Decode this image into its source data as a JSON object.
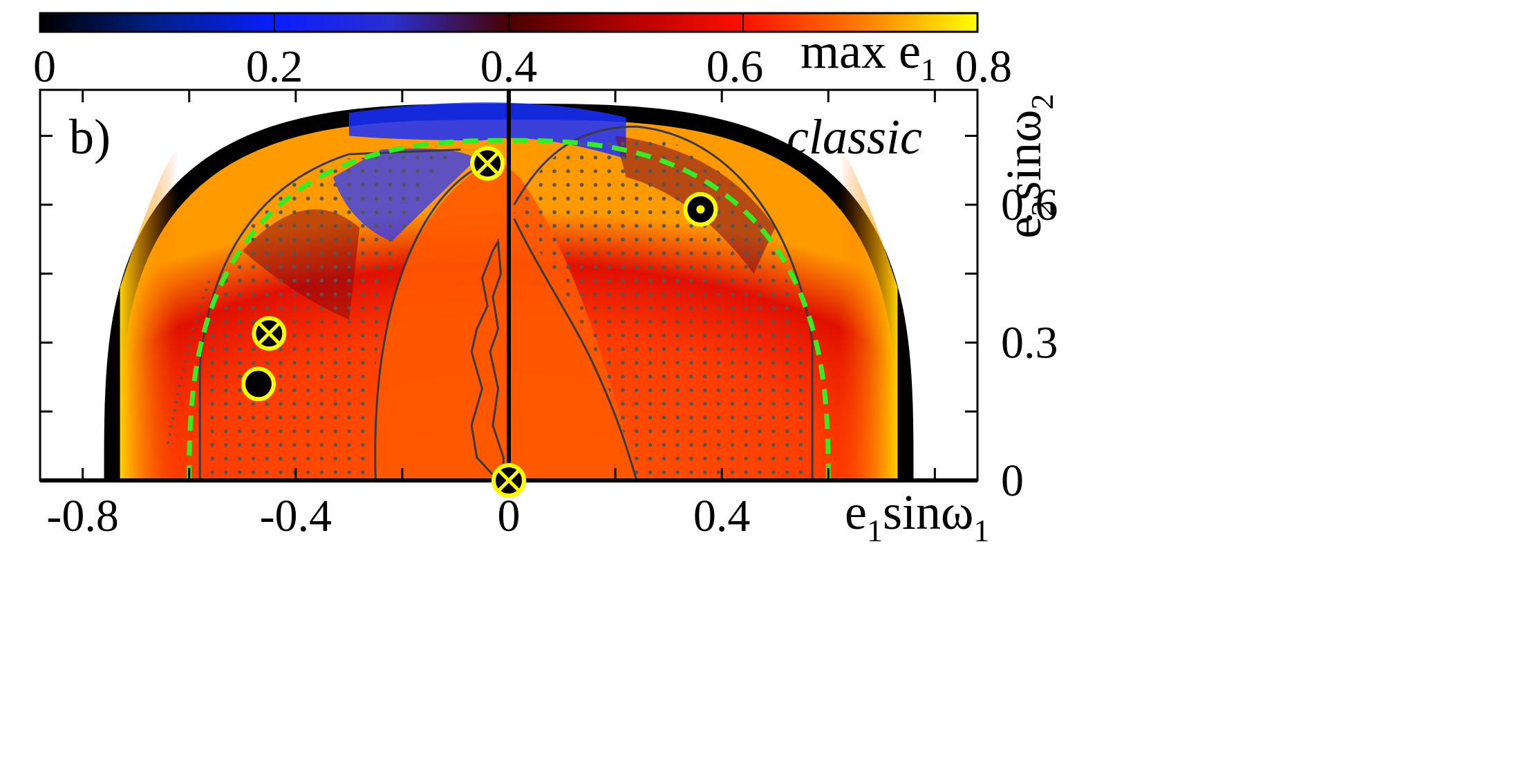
{
  "chart_data": {
    "type": "heatmap",
    "panel_label": "b)",
    "annotation": "classic",
    "colorbar": {
      "label_main": "max e",
      "label_sub": "1",
      "range": [
        0,
        0.8
      ],
      "ticks": [
        {
          "value": 0,
          "label": "0"
        },
        {
          "value": 0.2,
          "label": "0.2"
        },
        {
          "value": 0.4,
          "label": "0.4"
        },
        {
          "value": 0.6,
          "label": "0.6"
        },
        {
          "value": 0.8,
          "label": "0.8"
        }
      ],
      "stops": [
        {
          "value": 0.0,
          "color": "#000000"
        },
        {
          "value": 0.1,
          "color": "#00208a"
        },
        {
          "value": 0.2,
          "color": "#0a1eff"
        },
        {
          "value": 0.3,
          "color": "#2a2fcf"
        },
        {
          "value": 0.4,
          "color": "#4a0000"
        },
        {
          "value": 0.5,
          "color": "#b00000"
        },
        {
          "value": 0.6,
          "color": "#ff1000"
        },
        {
          "value": 0.7,
          "color": "#ff7a00"
        },
        {
          "value": 0.8,
          "color": "#ffff00"
        }
      ]
    },
    "x_axis": {
      "label_main": "e",
      "label_mid": "1",
      "label_tail": "sinω",
      "label_sub2": "1",
      "range": [
        -0.88,
        0.88
      ],
      "ticks": [
        {
          "value": -0.8,
          "label": "-0.8"
        },
        {
          "value": -0.4,
          "label": "-0.4"
        },
        {
          "value": 0,
          "label": "0"
        },
        {
          "value": 0.4,
          "label": "0.4"
        }
      ],
      "minor_ticks": [
        -0.6,
        -0.2,
        0.2,
        0.6,
        0.8
      ]
    },
    "y_axis": {
      "label_main": "e",
      "label_mid": "2",
      "label_tail": "sinω",
      "label_sub2": "2",
      "range": [
        0,
        0.85
      ],
      "ticks": [
        {
          "value": 0,
          "label": "0"
        },
        {
          "value": 0.3,
          "label": "0.3"
        },
        {
          "value": 0.6,
          "label": "0.6"
        }
      ],
      "minor_ticks": [
        0.15,
        0.45,
        0.75
      ]
    },
    "markers": [
      {
        "name": "crossed-circle",
        "x": -0.04,
        "y": 0.69,
        "fill": "#000000",
        "ring": "#ffff00",
        "symbol": "cross"
      },
      {
        "name": "crossed-circle",
        "x": -0.45,
        "y": 0.32,
        "fill": "#000000",
        "ring": "#ffff00",
        "symbol": "cross"
      },
      {
        "name": "filled-circle",
        "x": -0.47,
        "y": 0.21,
        "fill": "#000000",
        "ring": "#ffff00",
        "symbol": "none"
      },
      {
        "name": "dot-circle",
        "x": 0.36,
        "y": 0.59,
        "fill": "#000000",
        "ring": "#ffff00",
        "symbol": "dot"
      },
      {
        "name": "crossed-circle",
        "x": 0.0,
        "y": 0.0,
        "fill": "#000000",
        "ring": "#ffff00",
        "symbol": "cross"
      }
    ],
    "dashed_boundary": {
      "radius_x": 0.6,
      "radius_y": 0.74,
      "color": "#33ee22"
    },
    "stability_boundary": {
      "radius_x": 0.76,
      "radius_y": 0.82,
      "color": "#000000"
    }
  }
}
